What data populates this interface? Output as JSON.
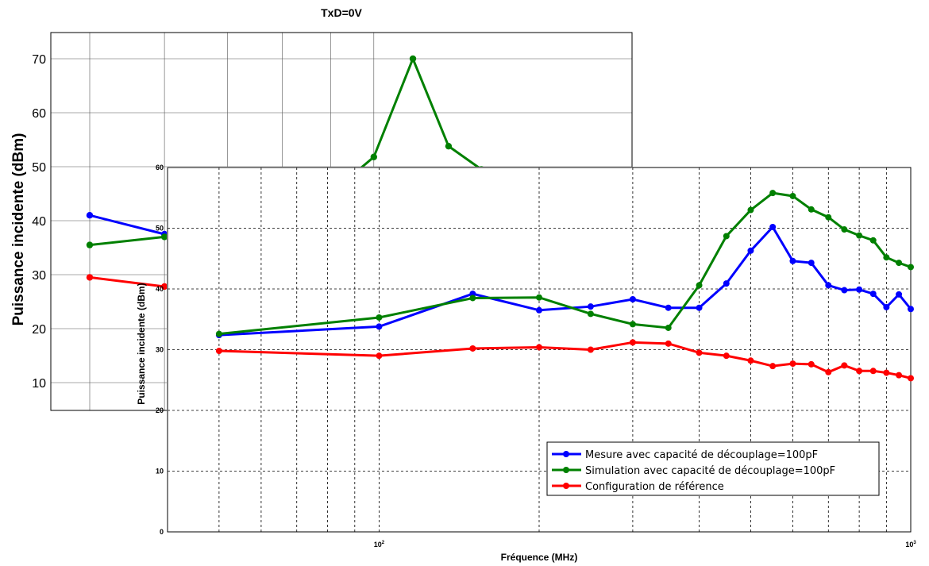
{
  "chart_data": [
    {
      "type": "line",
      "title": "TxD=0V",
      "ylabel": "Puissance incidente (dBm)",
      "xscale": "log",
      "ylim": [
        5,
        75
      ],
      "yticks": [
        10,
        20,
        30,
        40,
        50,
        60,
        70
      ],
      "grid": true,
      "series": [
        {
          "color": "#0000ff",
          "x": [
            50,
            60
          ],
          "y": [
            41.0,
            37.5
          ]
        },
        {
          "color": "#008000",
          "x": [
            50,
            60
          ],
          "y": [
            35.5,
            37.0
          ]
        },
        {
          "color": "#ff0000",
          "x": [
            50,
            60
          ],
          "y": [
            29.5,
            27.8
          ]
        },
        {
          "color": "#008000",
          "x": [
            95,
            100,
            110,
            120,
            130
          ],
          "y": [
            48.5,
            51.8,
            70.0,
            53.8,
            49.5
          ]
        }
      ]
    },
    {
      "type": "line",
      "xlabel": "Fréquence (MHz)",
      "ylabel": "Puissance incidente (dBm)",
      "xscale": "log",
      "xlim": [
        40,
        1000
      ],
      "xtick_labels": [
        {
          "x": 100,
          "base": "10",
          "exp": "2"
        },
        {
          "x": 1000,
          "base": "10",
          "exp": "3"
        }
      ],
      "ylim": [
        0,
        60
      ],
      "yticks": [
        0,
        10,
        20,
        30,
        40,
        50,
        60
      ],
      "grid": true,
      "legend_position": "bottom-right",
      "series": [
        {
          "name": "Mesure avec capacité de découplage=100pF",
          "color": "#0000ff",
          "x": [
            50,
            100,
            150,
            200,
            250,
            300,
            350,
            400,
            450,
            500,
            550,
            600,
            650,
            700,
            750,
            800,
            850,
            900,
            950,
            1000
          ],
          "y": [
            32.4,
            33.8,
            39.2,
            36.5,
            37.1,
            38.3,
            36.9,
            36.9,
            40.9,
            46.3,
            50.2,
            44.6,
            44.3,
            40.6,
            39.8,
            39.9,
            39.2,
            37.0,
            39.1,
            36.7
          ]
        },
        {
          "name": "Simulation avec capacité de découplage=100pF",
          "color": "#008000",
          "x": [
            50,
            100,
            150,
            200,
            250,
            300,
            350,
            400,
            450,
            500,
            550,
            600,
            650,
            700,
            750,
            800,
            850,
            900,
            950,
            1000
          ],
          "y": [
            32.6,
            35.3,
            38.5,
            38.6,
            35.9,
            34.2,
            33.6,
            40.6,
            48.7,
            53.0,
            55.8,
            55.3,
            53.1,
            51.8,
            49.8,
            48.8,
            48.0,
            45.2,
            44.3,
            43.6
          ]
        },
        {
          "name": "Configuration de référence",
          "color": "#ff0000",
          "x": [
            50,
            100,
            150,
            200,
            250,
            300,
            350,
            400,
            450,
            500,
            550,
            600,
            650,
            700,
            750,
            800,
            850,
            900,
            950,
            1000
          ],
          "y": [
            29.8,
            29.0,
            30.2,
            30.4,
            30.0,
            31.2,
            31.0,
            29.5,
            29.0,
            28.2,
            27.3,
            27.7,
            27.6,
            26.3,
            27.4,
            26.5,
            26.5,
            26.2,
            25.8,
            25.3
          ]
        }
      ]
    }
  ]
}
